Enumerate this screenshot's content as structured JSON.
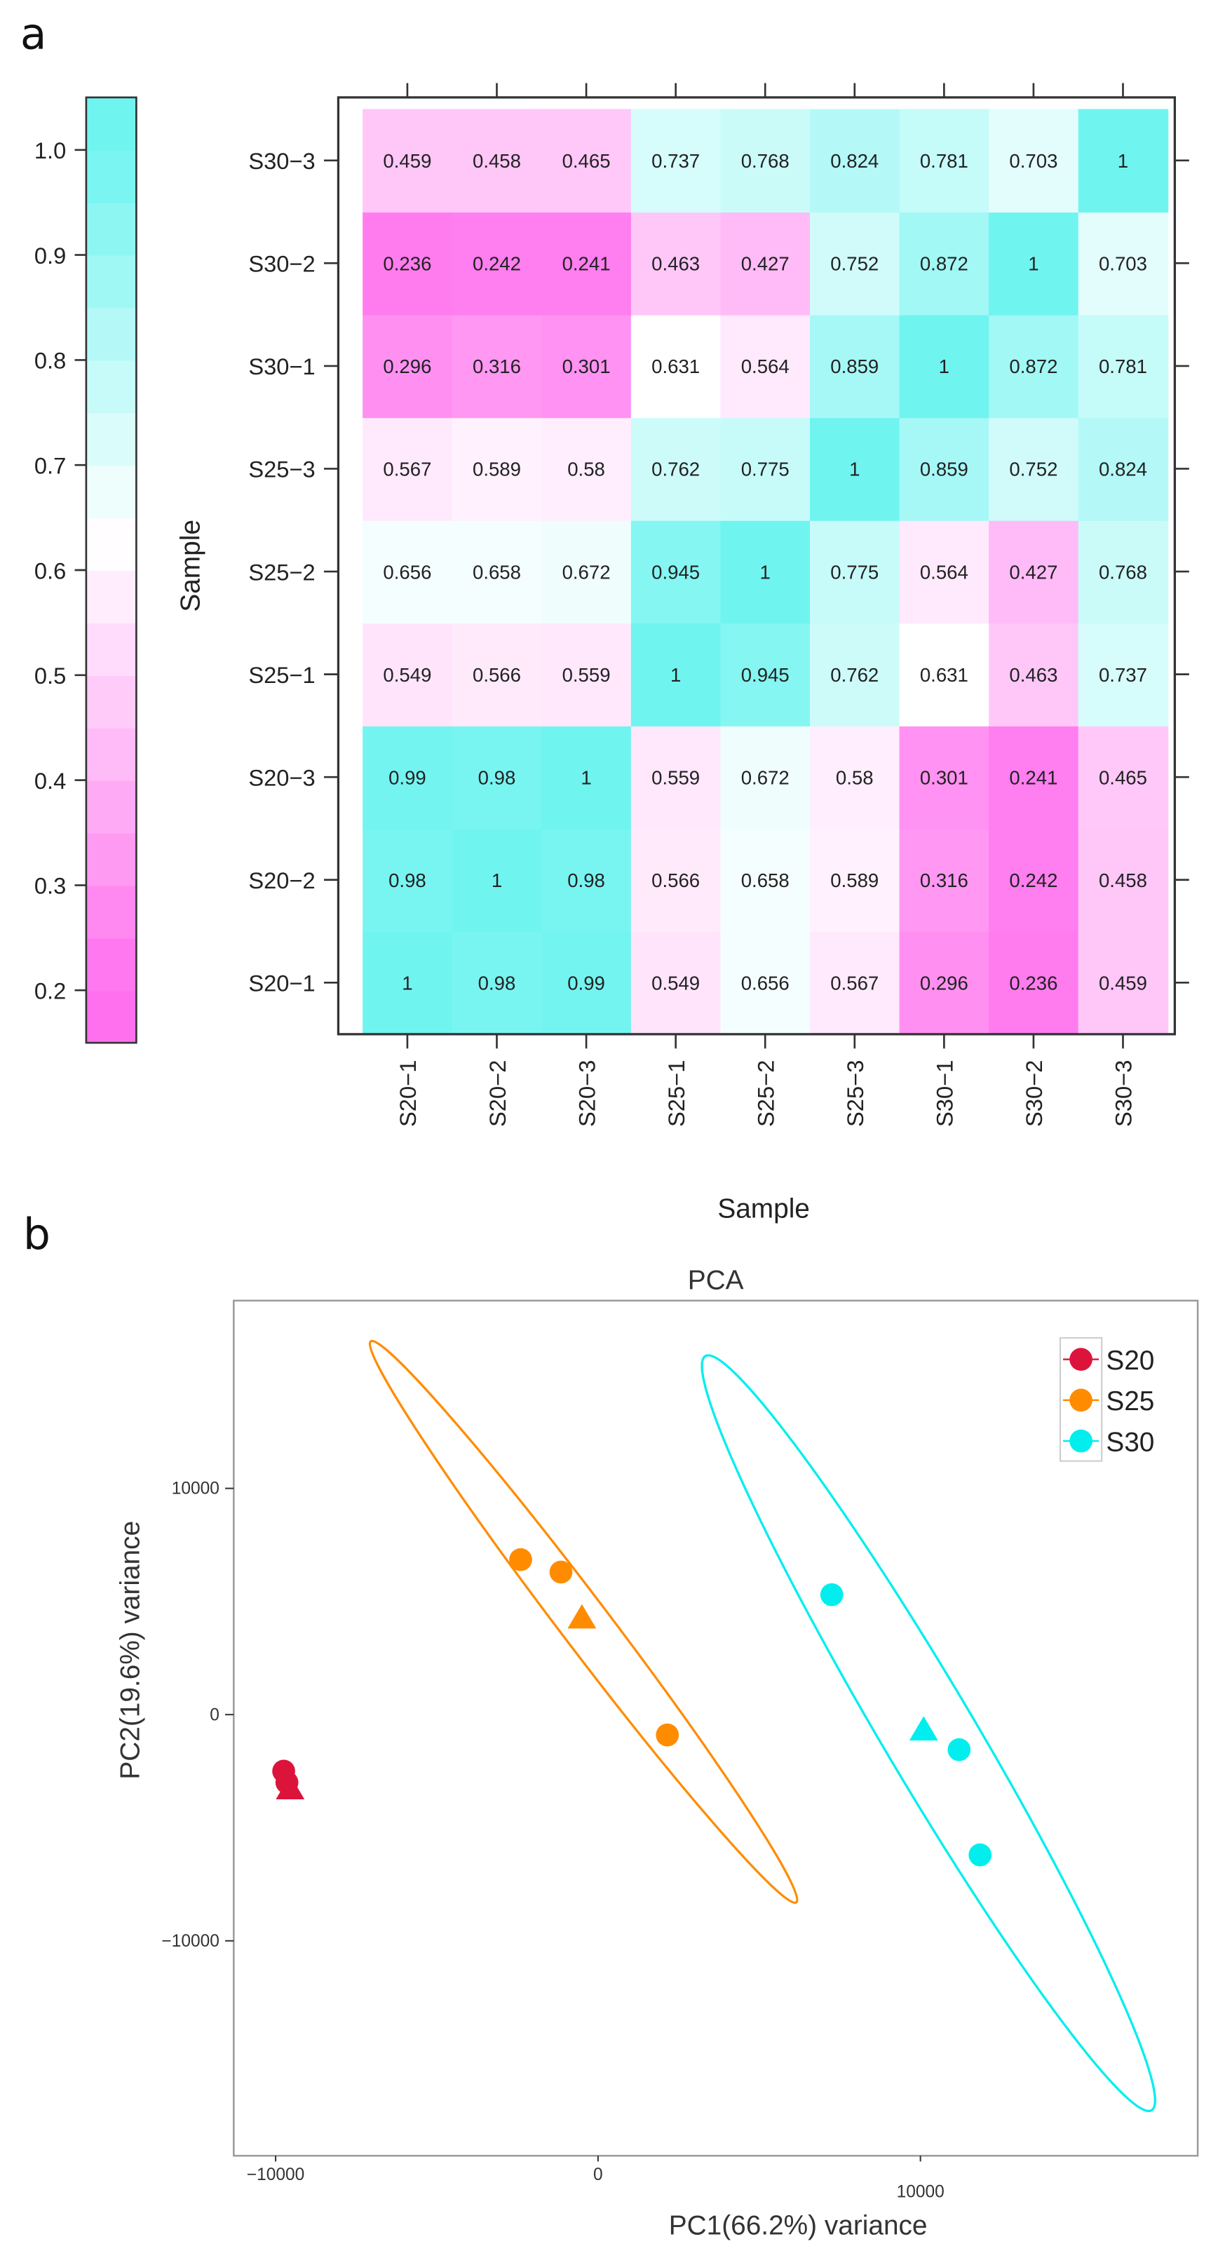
{
  "panel_labels": {
    "a": "a",
    "b": "b"
  },
  "chart_data": [
    {
      "type": "heatmap",
      "samples": [
        "S20−1",
        "S20−2",
        "S20−3",
        "S25−1",
        "S25−2",
        "S25−3",
        "S30−1",
        "S30−2",
        "S30−3"
      ],
      "matrix": [
        [
          1,
          0.98,
          0.99,
          0.549,
          0.656,
          0.567,
          0.296,
          0.236,
          0.459
        ],
        [
          0.98,
          1,
          0.98,
          0.566,
          0.658,
          0.589,
          0.316,
          0.242,
          0.458
        ],
        [
          0.99,
          0.98,
          1,
          0.559,
          0.672,
          0.58,
          0.301,
          0.241,
          0.465
        ],
        [
          0.549,
          0.566,
          0.559,
          1,
          0.945,
          0.762,
          0.631,
          0.463,
          0.737
        ],
        [
          0.656,
          0.658,
          0.672,
          0.945,
          1,
          0.775,
          0.564,
          0.427,
          0.768
        ],
        [
          0.567,
          0.589,
          0.58,
          0.762,
          0.775,
          1,
          0.859,
          0.752,
          0.824
        ],
        [
          0.296,
          0.316,
          0.301,
          0.631,
          0.564,
          0.859,
          1,
          0.872,
          0.781
        ],
        [
          0.236,
          0.242,
          0.241,
          0.463,
          0.427,
          0.752,
          0.872,
          1,
          0.703
        ],
        [
          0.459,
          0.458,
          0.465,
          0.737,
          0.768,
          0.824,
          0.781,
          0.703,
          1
        ]
      ],
      "xlabel": "Sample",
      "ylabel": "Sample",
      "colorbar": {
        "ticks": [
          "0.2",
          "0.3",
          "0.4",
          "0.5",
          "0.6",
          "0.7",
          "0.8",
          "0.9",
          "1.0"
        ],
        "range": [
          0.15,
          1.05
        ],
        "low_color": "#ff70ee",
        "mid_color": "#ffffff",
        "high_color": "#70f4f0"
      }
    },
    {
      "type": "scatter",
      "title": "PCA",
      "xlabel": "PC1(66.2%) variance",
      "ylabel": "PC2(19.6%) variance",
      "xlim": [
        -11300,
        18600
      ],
      "ylim": [
        -19500,
        18300
      ],
      "xticks": [
        {
          "value": -10000,
          "label": "−10000"
        },
        {
          "value": 0,
          "label": "0"
        },
        {
          "value": 10000,
          "label": "10000"
        }
      ],
      "yticks": [
        {
          "value": 10000,
          "label": "10000"
        },
        {
          "value": 0,
          "label": "0"
        },
        {
          "value": -10000,
          "label": "−10000"
        }
      ],
      "grid": false,
      "legend_position": "top-right",
      "groups": [
        {
          "name": "S20",
          "color": "#dc143c",
          "points": [
            {
              "x": -9750,
              "y": -2500,
              "shape": "circle"
            },
            {
              "x": -9650,
              "y": -3000,
              "shape": "circle"
            },
            {
              "x": -9550,
              "y": -3300,
              "shape": "triangle"
            }
          ]
        },
        {
          "name": "S25",
          "color": "#ff8c00",
          "points": [
            {
              "x": -2400,
              "y": 6850,
              "shape": "circle"
            },
            {
              "x": -1150,
              "y": 6300,
              "shape": "circle"
            },
            {
              "x": -500,
              "y": 4250,
              "shape": "triangle"
            },
            {
              "x": 2150,
              "y": -900,
              "shape": "circle"
            }
          ],
          "ellipse": {
            "center": [
              -450,
              4100
            ],
            "major_tip": [
              -7050,
              16500
            ],
            "minor_to_major": 0.07
          }
        },
        {
          "name": "S30",
          "color": "#00eeee",
          "points": [
            {
              "x": 7250,
              "y": 5300,
              "shape": "circle"
            },
            {
              "x": 10100,
              "y": -700,
              "shape": "triangle"
            },
            {
              "x": 11200,
              "y": -1550,
              "shape": "circle"
            },
            {
              "x": 11850,
              "y": -6200,
              "shape": "circle"
            }
          ],
          "ellipse": {
            "center": [
              10250,
              -820
            ],
            "major_tip": [
              3330,
              15850
            ],
            "minor_to_major": 0.105
          }
        }
      ]
    }
  ]
}
